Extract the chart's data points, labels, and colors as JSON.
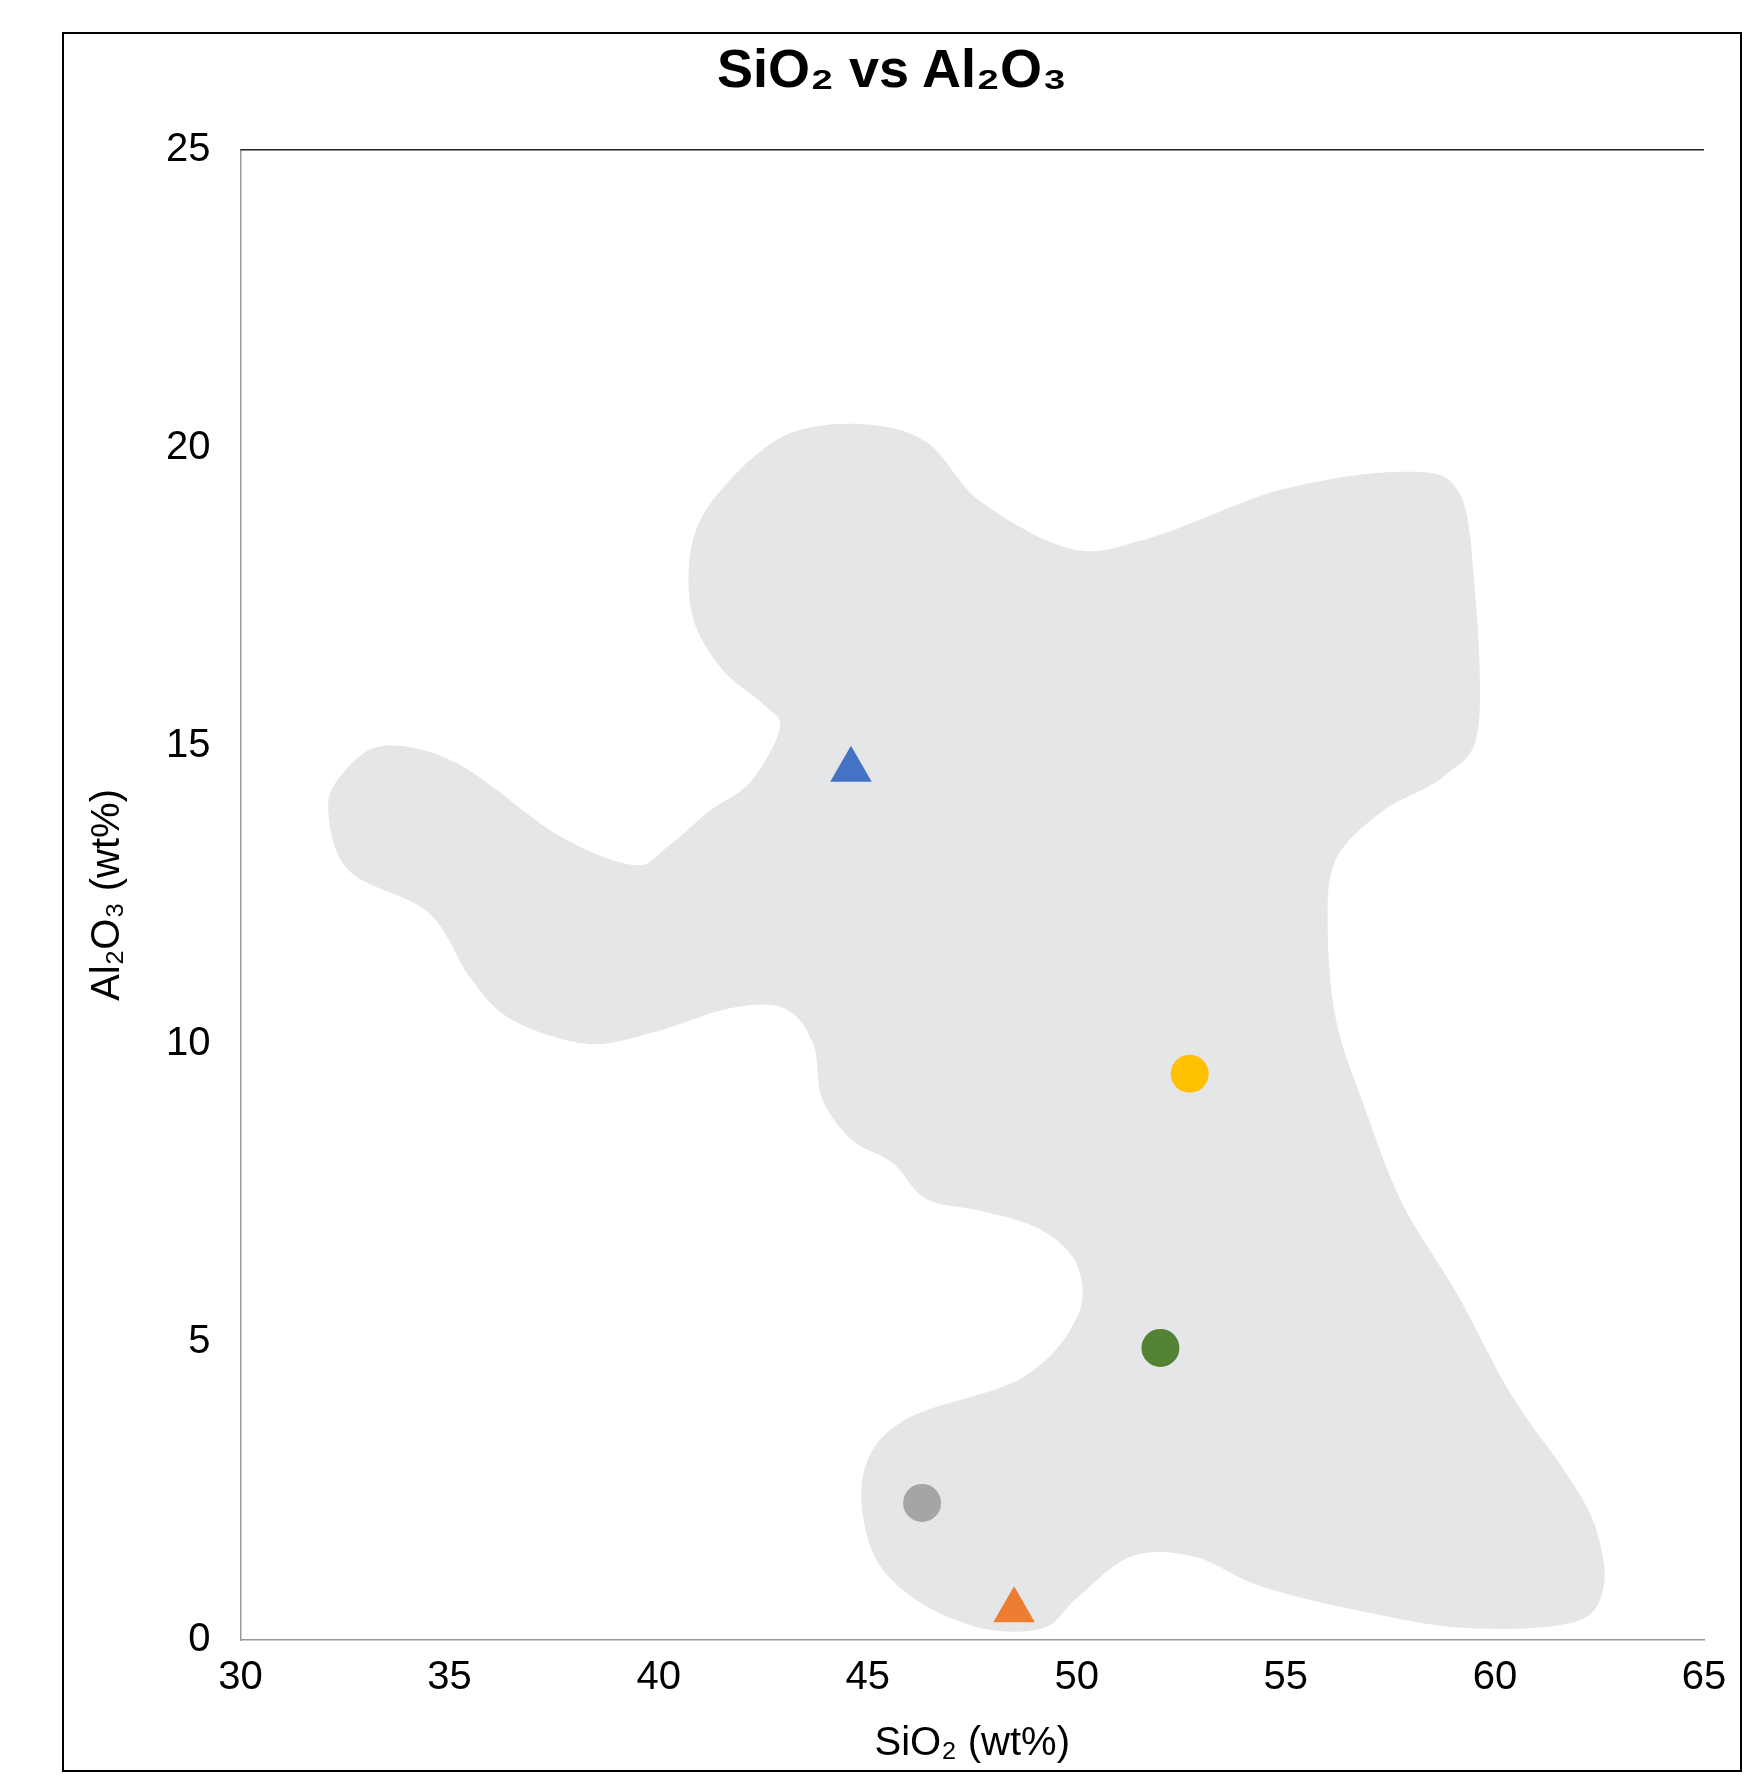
{
  "chart_data": {
    "type": "scatter",
    "title": "SiO₂ vs Al₂O₃",
    "xlabel": "SiO₂ (wt%)",
    "ylabel": "Al₂O₃ (wt%)",
    "xlim": [
      30,
      65
    ],
    "xticks": [
      30,
      35,
      40,
      45,
      50,
      55,
      60,
      65
    ],
    "ylim": [
      0,
      25
    ],
    "yticks": [
      0,
      5,
      10,
      15,
      20,
      25
    ],
    "grid": false,
    "legend": false,
    "series": [
      {
        "type": "area",
        "color": "#e5e6e8",
        "x": [
          44.8,
          46.4,
          47.7,
          49.9,
          51.8,
          54.9,
          57.8,
          59.1,
          59.5,
          59.6,
          58.8,
          57.3,
          56.2,
          56.0,
          56.2,
          56.9,
          57.8,
          59.1,
          60.4,
          61.7,
          62.4,
          62.6,
          61.9,
          59.3,
          56.7,
          54.4,
          52.8,
          51.3,
          50.0,
          49.2,
          47.7,
          46.1,
          45.1,
          44.9,
          45.9,
          48.7,
          50.0,
          50.0,
          49.1,
          47.7,
          46.4,
          45.6,
          44.6,
          43.9,
          43.7,
          43.0,
          41.7,
          39.9,
          38.3,
          36.5,
          35.5,
          34.5,
          32.6,
          32.1,
          32.4,
          33.4,
          35.2,
          37.6,
          39.4,
          40.2,
          41.2,
          42.2,
          42.9,
          42.5,
          41.5,
          40.8,
          40.8,
          41.5,
          43.0
        ],
        "values": [
          20.4,
          20.1,
          19.1,
          18.3,
          18.5,
          19.3,
          19.6,
          19.3,
          17.8,
          15.3,
          14.5,
          13.9,
          13.1,
          12.0,
          10.4,
          8.9,
          7.3,
          5.8,
          4.1,
          2.8,
          1.9,
          0.9,
          0.3,
          0.2,
          0.5,
          0.9,
          1.4,
          1.4,
          0.7,
          0.2,
          0.2,
          0.7,
          1.5,
          2.8,
          3.7,
          4.4,
          5.4,
          6.3,
          6.9,
          7.2,
          7.4,
          8.0,
          8.4,
          9.1,
          10.0,
          10.6,
          10.6,
          10.2,
          10.0,
          10.4,
          11.1,
          12.2,
          12.9,
          13.9,
          14.5,
          15.0,
          14.7,
          13.5,
          13.0,
          13.3,
          13.9,
          14.4,
          15.3,
          15.7,
          16.3,
          17.2,
          18.4,
          19.3,
          20.2
        ]
      },
      {
        "marker": "triangle",
        "x": [
          44.6,
          48.5
        ],
        "values": [
          14.6,
          0.5
        ],
        "colors": [
          "#4472c4",
          "#ed7d31"
        ]
      },
      {
        "marker": "circle",
        "x": [
          52.7,
          52.0,
          46.3
        ],
        "values": [
          9.5,
          4.9,
          2.3
        ],
        "colors": [
          "#ffc000",
          "#548235",
          "#a5a5a5"
        ]
      }
    ]
  }
}
